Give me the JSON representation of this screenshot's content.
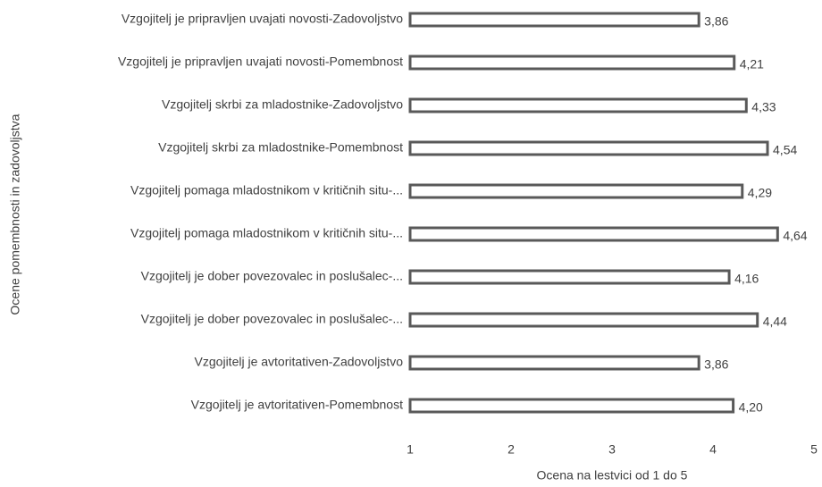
{
  "chart_data": {
    "type": "bar",
    "orientation": "horizontal",
    "x_label": "Ocena na lestvici od 1 do 5",
    "y_label": "Ocene pomembnosti in zadovoljstva",
    "categories": [
      "Vzgojitelj je pripravljen uvajati novosti-Zadovoljstvo",
      "Vzgojitelj je pripravljen uvajati novosti-Pomembnost",
      "Vzgojitelj skrbi za mladostnike-Zadovoljstvo",
      "Vzgojitelj skrbi za mladostnike-Pomembnost",
      "Vzgojitelj pomaga mladostnikom v kritičnih situ-...",
      "Vzgojitelj pomaga mladostnikom v kritičnih situ-...",
      "Vzgojitelj je dober povezovalec in poslušalec-...",
      "Vzgojitelj je dober povezovalec in poslušalec-...",
      "Vzgojitelj je avtoritativen-Zadovoljstvo",
      "Vzgojitelj je avtoritativen-Pomembnost"
    ],
    "values": [
      3.86,
      4.21,
      4.33,
      4.54,
      4.29,
      4.64,
      4.16,
      4.44,
      3.86,
      4.2
    ],
    "value_labels": [
      "3,86",
      "4,21",
      "4,33",
      "4,54",
      "4,29",
      "4,64",
      "4,16",
      "4,44",
      "3,86",
      "4,20"
    ],
    "color": "#595959",
    "xlim": [
      1,
      5
    ],
    "xticks": [
      1,
      2,
      3,
      4,
      5
    ],
    "grid": false
  }
}
